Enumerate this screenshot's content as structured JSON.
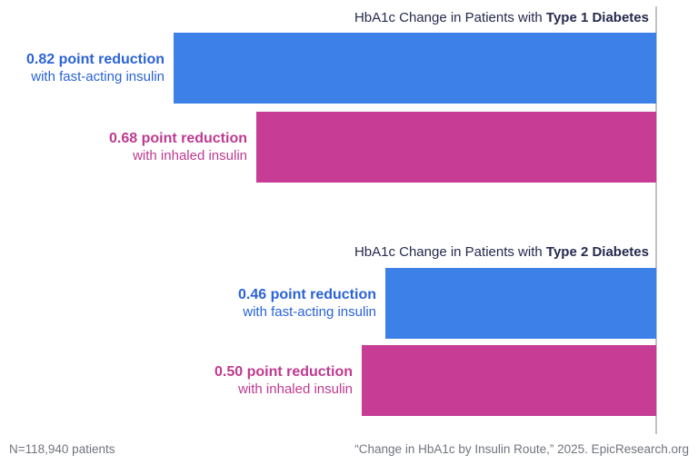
{
  "colors": {
    "fast_acting_bar": "#3c80e8",
    "inhaled_bar": "#c73d96",
    "fast_acting_text": "#2a63d8",
    "inhaled_text": "#bf3a90",
    "title_text": "#262a4e",
    "footer_text": "#71747f",
    "axis_line": "#c1c2c7"
  },
  "footer": {
    "left": "N=118,940 patients",
    "right": "“Change in HbA1c by Insulin Route,” 2025. EpicResearch.org"
  },
  "chart_data": [
    {
      "type": "bar",
      "orientation": "horizontal-right-aligned",
      "title_prefix": "HbA1c Change in Patients with ",
      "title_bold": "Type 1 Diabetes",
      "value_unit": "HbA1c point reduction",
      "categories": [
        "fast-acting insulin",
        "inhaled insulin"
      ],
      "values": [
        0.82,
        0.68
      ],
      "xlim": [
        0,
        0.85
      ],
      "grid": false,
      "legend": "none",
      "bars": [
        {
          "series": "fast-acting insulin",
          "value": 0.82,
          "value_label": "0.82 point reduction",
          "sub_label": "with fast-acting insulin",
          "color": "#3c80e8",
          "text_color": "#2a63d8"
        },
        {
          "series": "inhaled insulin",
          "value": 0.68,
          "value_label": "0.68 point reduction",
          "sub_label": "with inhaled insulin",
          "color": "#c73d96",
          "text_color": "#bf3a90"
        }
      ]
    },
    {
      "type": "bar",
      "orientation": "horizontal-right-aligned",
      "title_prefix": "HbA1c Change in Patients with ",
      "title_bold": "Type 2 Diabetes",
      "value_unit": "HbA1c point reduction",
      "categories": [
        "fast-acting insulin",
        "inhaled insulin"
      ],
      "values": [
        0.46,
        0.5
      ],
      "xlim": [
        0,
        0.85
      ],
      "grid": false,
      "legend": "none",
      "bars": [
        {
          "series": "fast-acting insulin",
          "value": 0.46,
          "value_label": "0.46 point reduction",
          "sub_label": "with fast-acting insulin",
          "color": "#3c80e8",
          "text_color": "#2a63d8"
        },
        {
          "series": "inhaled insulin",
          "value": 0.5,
          "value_label": "0.50 point reduction",
          "sub_label": "with inhaled insulin",
          "color": "#c73d96",
          "text_color": "#bf3a90"
        }
      ]
    }
  ]
}
